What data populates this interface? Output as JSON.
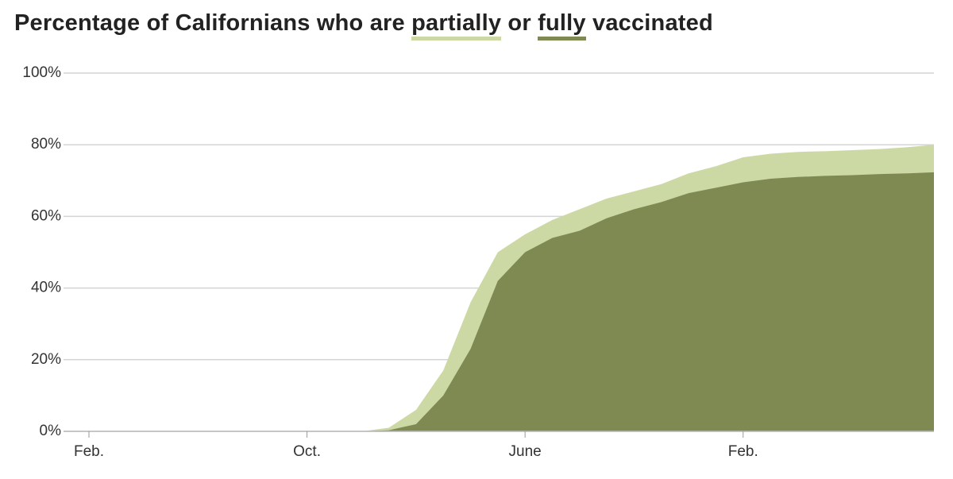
{
  "chart_data": {
    "type": "area",
    "title": [
      "Percentage of Californians who are",
      "or",
      "vaccinated"
    ],
    "categories": [
      "Feb.",
      null,
      null,
      null,
      null,
      null,
      null,
      null,
      "Oct.",
      null,
      null,
      null,
      null,
      null,
      null,
      null,
      "June",
      null,
      null,
      null,
      null,
      null,
      null,
      null,
      "Feb.",
      null,
      null,
      null,
      null,
      null,
      null,
      null
    ],
    "series": [
      {
        "name": "partially",
        "color": "#cdd9a5",
        "values": [
          0,
          0,
          0,
          0,
          0,
          0,
          0,
          0,
          0,
          0,
          0,
          1,
          6,
          17,
          36,
          50,
          55,
          59,
          62,
          65,
          67,
          69,
          72,
          74,
          76.5,
          77.5,
          78,
          78.2,
          78.5,
          78.8,
          79.3,
          80
        ]
      },
      {
        "name": "fully",
        "color": "#7f8a53",
        "values": [
          0,
          0,
          0,
          0,
          0,
          0,
          0,
          0,
          0,
          0,
          0,
          0.3,
          2,
          10,
          23,
          42,
          50,
          54,
          56,
          59.5,
          62,
          64,
          66.5,
          68,
          69.5,
          70.5,
          71,
          71.3,
          71.5,
          71.8,
          72,
          72.3
        ]
      }
    ],
    "ylim": [
      0,
      100
    ],
    "yticks": [
      {
        "value": 0,
        "label": "0%"
      },
      {
        "value": 20,
        "label": "20%"
      },
      {
        "value": 40,
        "label": "40%"
      },
      {
        "value": 60,
        "label": "60%"
      },
      {
        "value": 80,
        "label": "80%"
      },
      {
        "value": 100,
        "label": "100%"
      }
    ],
    "grid": true
  }
}
